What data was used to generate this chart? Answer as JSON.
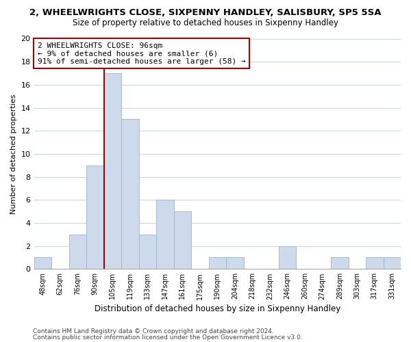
{
  "title": "2, WHEELWRIGHTS CLOSE, SIXPENNY HANDLEY, SALISBURY, SP5 5SA",
  "subtitle": "Size of property relative to detached houses in Sixpenny Handley",
  "xlabel": "Distribution of detached houses by size in Sixpenny Handley",
  "ylabel": "Number of detached properties",
  "bin_labels": [
    "48sqm",
    "62sqm",
    "76sqm",
    "90sqm",
    "105sqm",
    "119sqm",
    "133sqm",
    "147sqm",
    "161sqm",
    "175sqm",
    "190sqm",
    "204sqm",
    "218sqm",
    "232sqm",
    "246sqm",
    "260sqm",
    "274sqm",
    "289sqm",
    "303sqm",
    "317sqm",
    "331sqm"
  ],
  "bar_heights": [
    1,
    0,
    3,
    9,
    17,
    13,
    3,
    6,
    5,
    0,
    1,
    1,
    0,
    0,
    2,
    0,
    0,
    1,
    0,
    1,
    1
  ],
  "bar_color": "#ccdaeb",
  "bar_edge_color": "#9ab3cc",
  "vline_x_index": 4,
  "vline_color": "#aa0000",
  "annotation_text": "2 WHEELWRIGHTS CLOSE: 96sqm\n← 9% of detached houses are smaller (6)\n91% of semi-detached houses are larger (58) →",
  "annotation_box_color": "#ffffff",
  "annotation_box_edge_color": "#aa0000",
  "ylim": [
    0,
    20
  ],
  "yticks": [
    0,
    2,
    4,
    6,
    8,
    10,
    12,
    14,
    16,
    18,
    20
  ],
  "footer_line1": "Contains HM Land Registry data © Crown copyright and database right 2024.",
  "footer_line2": "Contains public sector information licensed under the Open Government Licence v3.0.",
  "bg_color": "#ffffff",
  "grid_color": "#ccd6e6"
}
